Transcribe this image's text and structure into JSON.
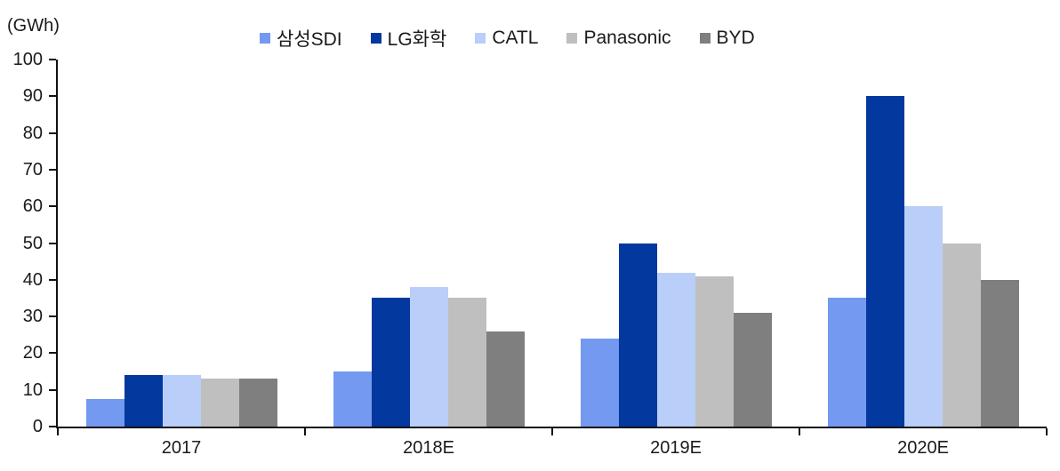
{
  "chart_data": {
    "type": "bar",
    "title": "",
    "unit_label": "(GWh)",
    "categories": [
      "2017",
      "2018E",
      "2019E",
      "2020E"
    ],
    "series": [
      {
        "name": "삼성SDI",
        "color": "#7399F0",
        "values": [
          7.5,
          15,
          24,
          35
        ]
      },
      {
        "name": "LG화학",
        "color": "#03389E",
        "values": [
          14,
          35,
          50,
          90
        ]
      },
      {
        "name": "CATL",
        "color": "#B9CEF8",
        "values": [
          14,
          38,
          42,
          60
        ]
      },
      {
        "name": "Panasonic",
        "color": "#BFBFBF",
        "values": [
          13,
          35,
          41,
          50
        ]
      },
      {
        "name": "BYD",
        "color": "#7F7F7F",
        "values": [
          13,
          26,
          31,
          40
        ]
      }
    ],
    "ylabel": "",
    "xlabel": "",
    "ylim": [
      0,
      100
    ],
    "y_ticks": [
      0,
      10,
      20,
      30,
      40,
      50,
      60,
      70,
      80,
      90,
      100
    ],
    "grid": false,
    "legend_position": "top-center",
    "axis_color": "#111111"
  }
}
